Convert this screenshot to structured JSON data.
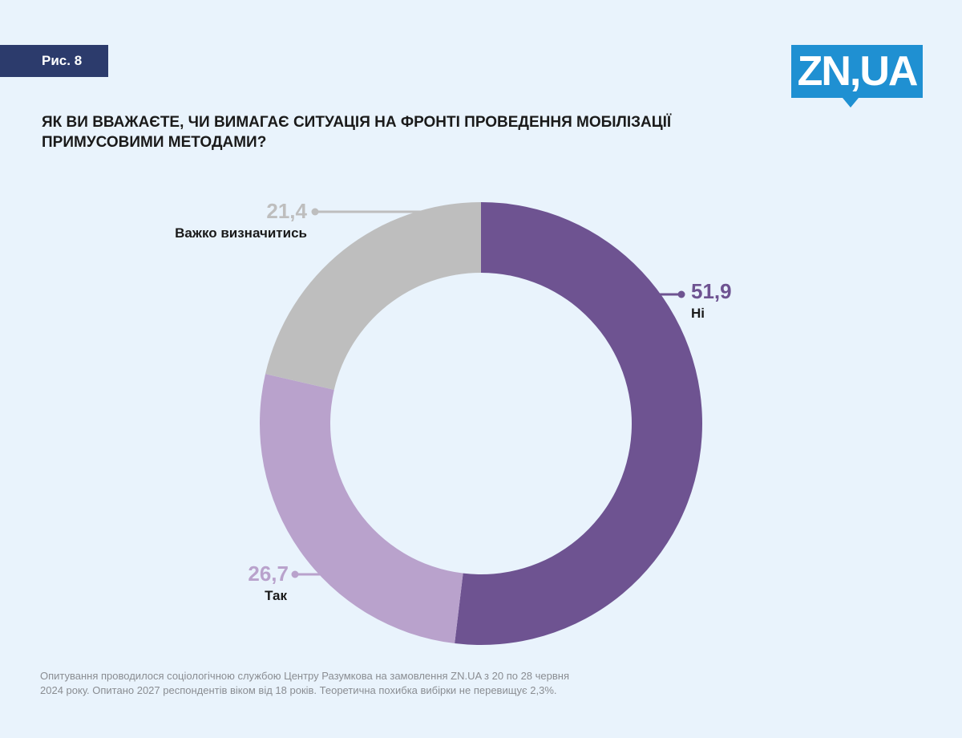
{
  "figure_label": "Рис. 8",
  "logo_text": "ZN,UA",
  "title": "ЯК ВИ ВВАЖАЄТЕ, ЧИ ВИМАГАЄ СИТУАЦІЯ НА ФРОНТІ ПРОВЕДЕННЯ МОБІЛІЗАЦІЇ ПРИМУСОВИМИ МЕТОДАМИ?",
  "note": "Опитування проводилося соціологічною службою Центру Разумкова на замовлення ZN.UA з 20 по 28 червня 2024 року. Опитано 2027 респондентів віком від 18 років. Теоретична похибка вибірки не перевищує 2,3%.",
  "chart_data": {
    "type": "pie",
    "variant": "donut",
    "categories": [
      "Ні",
      "Так",
      "Важко визначитись"
    ],
    "values": [
      51.9,
      26.7,
      21.4
    ],
    "value_labels": [
      "51,9",
      "26,7",
      "21,4"
    ],
    "colors": [
      "#6e5391",
      "#b9a2cc",
      "#bebebe"
    ],
    "start": "top, clockwise"
  }
}
